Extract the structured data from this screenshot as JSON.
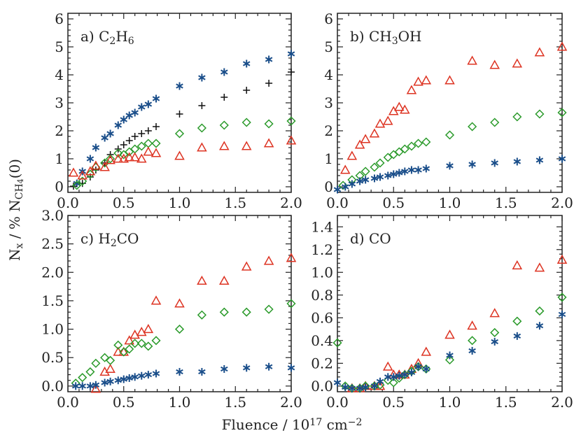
{
  "colors": {
    "C2H6": "#1a4e8a",
    "CH3OH": "#dd3322",
    "H2CO": "#2a9a2a",
    "CO": "#111111"
  },
  "axes": {
    "xlabel_main": "Fluence / 10",
    "xlabel_exp": "17",
    "xlabel_unit": " cm",
    "xlabel_unit_exp": "−2",
    "ylabel_main": "N",
    "ylabel_sub": "x",
    "ylabel_mid": " / % N",
    "ylabel_sub2": "CH",
    "ylabel_sub3": "4",
    "ylabel_end": "(0)"
  },
  "chart_data": [
    {
      "type": "scatter",
      "panel": "a",
      "label_prefix": "a)",
      "label_parts": [
        [
          "C",
          ""
        ],
        [
          "2",
          "sub"
        ],
        [
          "H",
          ""
        ],
        [
          "6",
          "sub"
        ]
      ],
      "xlim": [
        0,
        2.0
      ],
      "ylim": [
        -0.2,
        6.2
      ],
      "xticks": [
        0.0,
        0.5,
        1.0,
        1.5,
        2.0
      ],
      "xtick_labels": [
        "0.0",
        "0.5",
        "1.0",
        "1.5",
        "2.0"
      ],
      "yticks": [
        0,
        1,
        2,
        3,
        4,
        5,
        6
      ],
      "ytick_labels": [
        "0",
        "1",
        "2",
        "3",
        "4",
        "5",
        "6"
      ],
      "series": [
        {
          "marker": "star",
          "color_key": "C2H6",
          "x": [
            0.08,
            0.13,
            0.2,
            0.25,
            0.33,
            0.38,
            0.45,
            0.5,
            0.55,
            0.6,
            0.66,
            0.72,
            0.79,
            1.0,
            1.2,
            1.4,
            1.6,
            1.8,
            2.0
          ],
          "y": [
            0.12,
            0.55,
            1.0,
            1.4,
            1.75,
            1.9,
            2.2,
            2.4,
            2.55,
            2.65,
            2.85,
            2.95,
            3.15,
            3.6,
            3.9,
            4.1,
            4.4,
            4.55,
            4.75
          ]
        },
        {
          "marker": "plus",
          "color_key": "CO",
          "x": [
            0.05,
            0.13,
            0.2,
            0.25,
            0.33,
            0.38,
            0.45,
            0.5,
            0.55,
            0.6,
            0.66,
            0.72,
            0.79,
            1.0,
            1.2,
            1.4,
            1.6,
            1.8,
            2.0
          ],
          "y": [
            0.02,
            0.12,
            0.35,
            0.6,
            0.85,
            1.15,
            1.35,
            1.5,
            1.65,
            1.8,
            1.9,
            2.0,
            2.15,
            2.6,
            2.9,
            3.2,
            3.45,
            3.7,
            4.1
          ]
        },
        {
          "marker": "diamond",
          "color_key": "H2CO",
          "x": [
            0.08,
            0.13,
            0.2,
            0.25,
            0.33,
            0.38,
            0.45,
            0.5,
            0.55,
            0.6,
            0.66,
            0.72,
            0.79,
            1.0,
            1.2,
            1.4,
            1.6,
            1.8,
            2.0
          ],
          "y": [
            0.05,
            0.2,
            0.45,
            0.7,
            0.85,
            1.0,
            1.2,
            1.15,
            1.25,
            1.35,
            1.45,
            1.55,
            1.55,
            1.9,
            2.1,
            2.2,
            2.3,
            2.25,
            2.35
          ]
        },
        {
          "marker": "triangle",
          "color_key": "CH3OH",
          "x": [
            0.05,
            0.13,
            0.2,
            0.25,
            0.33,
            0.38,
            0.45,
            0.5,
            0.55,
            0.6,
            0.66,
            0.72,
            0.79,
            1.0,
            1.2,
            1.4,
            1.6,
            1.8,
            2.0
          ],
          "y": [
            0.5,
            0.4,
            0.55,
            0.75,
            0.7,
            0.95,
            1.0,
            1.0,
            1.05,
            1.05,
            1.0,
            1.25,
            1.2,
            1.1,
            1.4,
            1.45,
            1.45,
            1.55,
            1.65
          ]
        }
      ]
    },
    {
      "type": "scatter",
      "panel": "b",
      "label_prefix": "b)",
      "label_parts": [
        [
          "CH",
          ""
        ],
        [
          "3",
          "sub"
        ],
        [
          "OH",
          ""
        ]
      ],
      "xlim": [
        0,
        2.0
      ],
      "ylim": [
        -0.2,
        6.2
      ],
      "xticks": [
        0.0,
        0.5,
        1.0,
        1.5,
        2.0
      ],
      "xtick_labels": [
        "0.0",
        "0.5",
        "1.0",
        "1.5",
        "2.0"
      ],
      "yticks": [
        0,
        1,
        2,
        3,
        4,
        5,
        6
      ],
      "ytick_labels": [
        "0",
        "1",
        "2",
        "3",
        "4",
        "5",
        "6"
      ],
      "series": [
        {
          "marker": "triangle",
          "color_key": "CH3OH",
          "x": [
            0.07,
            0.13,
            0.2,
            0.25,
            0.33,
            0.38,
            0.45,
            0.5,
            0.55,
            0.6,
            0.66,
            0.72,
            0.79,
            1.0,
            1.2,
            1.4,
            1.6,
            1.8,
            2.0
          ],
          "y": [
            0.6,
            1.1,
            1.5,
            1.7,
            1.9,
            2.25,
            2.35,
            2.7,
            2.85,
            2.75,
            3.45,
            3.75,
            3.8,
            3.8,
            4.5,
            4.35,
            4.4,
            4.8,
            5.0
          ]
        },
        {
          "marker": "diamond",
          "color_key": "H2CO",
          "x": [
            0.05,
            0.13,
            0.2,
            0.25,
            0.33,
            0.38,
            0.45,
            0.5,
            0.55,
            0.6,
            0.66,
            0.72,
            0.79,
            1.0,
            1.2,
            1.4,
            1.6,
            1.8,
            2.0
          ],
          "y": [
            0.05,
            0.25,
            0.4,
            0.55,
            0.7,
            0.85,
            1.05,
            1.15,
            1.25,
            1.35,
            1.45,
            1.55,
            1.6,
            1.85,
            2.15,
            2.3,
            2.5,
            2.6,
            2.65
          ]
        },
        {
          "marker": "star",
          "color_key": "C2H6",
          "x": [
            0.0,
            0.07,
            0.13,
            0.2,
            0.25,
            0.33,
            0.38,
            0.45,
            0.5,
            0.55,
            0.6,
            0.66,
            0.72,
            0.79,
            1.0,
            1.2,
            1.4,
            1.6,
            1.8,
            2.0
          ],
          "y": [
            -0.1,
            0.0,
            0.1,
            0.2,
            0.25,
            0.3,
            0.35,
            0.4,
            0.45,
            0.5,
            0.55,
            0.6,
            0.6,
            0.65,
            0.75,
            0.8,
            0.85,
            0.9,
            0.95,
            1.0
          ]
        }
      ]
    },
    {
      "type": "scatter",
      "panel": "c",
      "label_prefix": "c)",
      "label_parts": [
        [
          "H",
          ""
        ],
        [
          "2",
          "sub"
        ],
        [
          "CO",
          ""
        ]
      ],
      "xlim": [
        0,
        2.0
      ],
      "ylim": [
        -0.1,
        3.0
      ],
      "xticks": [
        0.0,
        0.5,
        1.0,
        1.5,
        2.0
      ],
      "xtick_labels": [
        "0.0",
        "0.5",
        "1.0",
        "1.5",
        "2.0"
      ],
      "yticks": [
        0.0,
        0.5,
        1.0,
        1.5,
        2.0,
        2.5,
        3.0
      ],
      "ytick_labels": [
        "0.0",
        "0.5",
        "1.0",
        "1.5",
        "2.0",
        "2.5",
        "3.0"
      ],
      "series": [
        {
          "marker": "triangle",
          "color_key": "CH3OH",
          "x": [
            0.25,
            0.33,
            0.38,
            0.45,
            0.5,
            0.55,
            0.6,
            0.66,
            0.72,
            0.79,
            1.0,
            1.2,
            1.4,
            1.6,
            1.8,
            2.0
          ],
          "y": [
            -0.05,
            0.25,
            0.3,
            0.6,
            0.6,
            0.8,
            0.9,
            0.95,
            1.0,
            1.5,
            1.45,
            1.85,
            1.85,
            2.1,
            2.2,
            2.25
          ]
        },
        {
          "marker": "diamond",
          "color_key": "H2CO",
          "x": [
            0.07,
            0.13,
            0.2,
            0.25,
            0.33,
            0.38,
            0.45,
            0.5,
            0.55,
            0.6,
            0.66,
            0.72,
            0.79,
            1.0,
            1.2,
            1.4,
            1.6,
            1.8,
            2.0
          ],
          "y": [
            0.05,
            0.15,
            0.25,
            0.4,
            0.5,
            0.45,
            0.72,
            0.6,
            0.65,
            0.75,
            0.75,
            0.7,
            0.8,
            1.0,
            1.25,
            1.3,
            1.3,
            1.35,
            1.45
          ]
        },
        {
          "marker": "star",
          "color_key": "C2H6",
          "x": [
            0.07,
            0.13,
            0.2,
            0.25,
            0.33,
            0.38,
            0.45,
            0.5,
            0.55,
            0.6,
            0.66,
            0.72,
            0.79,
            1.0,
            1.2,
            1.4,
            1.6,
            1.8,
            2.0
          ],
          "y": [
            0.0,
            0.0,
            0.0,
            0.02,
            0.06,
            0.08,
            0.1,
            0.12,
            0.14,
            0.16,
            0.18,
            0.2,
            0.22,
            0.25,
            0.25,
            0.3,
            0.32,
            0.34,
            0.32
          ]
        }
      ]
    },
    {
      "type": "scatter",
      "panel": "d",
      "label_prefix": "d)",
      "label_parts": [
        [
          "CO",
          ""
        ]
      ],
      "xlim": [
        0,
        2.0
      ],
      "ylim": [
        -0.05,
        1.5
      ],
      "xticks": [
        0.0,
        0.5,
        1.0,
        1.5,
        2.0
      ],
      "xtick_labels": [
        "0.0",
        "0.5",
        "1.0",
        "1.5",
        "2.0"
      ],
      "yticks": [
        0.0,
        0.2,
        0.4,
        0.6,
        0.8,
        1.0,
        1.2,
        1.4
      ],
      "ytick_labels": [
        "0.0",
        "0.2",
        "0.4",
        "0.6",
        "0.8",
        "1.0",
        "1.2",
        "1.4"
      ],
      "series": [
        {
          "marker": "triangle",
          "color_key": "CH3OH",
          "x": [
            0.13,
            0.2,
            0.25,
            0.33,
            0.38,
            0.45,
            0.5,
            0.55,
            0.6,
            0.66,
            0.72,
            0.79,
            1.0,
            1.2,
            1.4,
            1.6,
            1.8,
            2.0
          ],
          "y": [
            -0.02,
            -0.02,
            0.0,
            0.0,
            0.0,
            0.17,
            0.1,
            0.1,
            0.1,
            0.15,
            0.2,
            0.3,
            0.45,
            0.53,
            0.64,
            1.06,
            1.04,
            1.11
          ]
        },
        {
          "marker": "diamond",
          "color_key": "H2CO",
          "x": [
            0.0,
            0.07,
            0.13,
            0.2,
            0.25,
            0.33,
            0.38,
            0.45,
            0.5,
            0.55,
            0.6,
            0.66,
            0.72,
            0.79,
            1.0,
            1.2,
            1.4,
            1.6,
            1.8,
            2.0
          ],
          "y": [
            0.38,
            0.0,
            -0.02,
            -0.02,
            0.0,
            0.0,
            0.01,
            0.05,
            0.03,
            0.07,
            0.1,
            0.13,
            0.17,
            0.15,
            0.23,
            0.4,
            0.47,
            0.57,
            0.66,
            0.78
          ]
        },
        {
          "marker": "star",
          "color_key": "C2H6",
          "x": [
            0.0,
            0.07,
            0.13,
            0.2,
            0.25,
            0.33,
            0.38,
            0.45,
            0.5,
            0.55,
            0.6,
            0.66,
            0.72,
            0.79,
            1.0,
            1.2,
            1.4,
            1.6,
            1.8,
            2.0
          ],
          "y": [
            0.03,
            -0.01,
            -0.02,
            -0.02,
            -0.01,
            0.0,
            0.04,
            0.08,
            0.08,
            0.09,
            0.1,
            0.12,
            0.17,
            0.15,
            0.27,
            0.31,
            0.39,
            0.44,
            0.53,
            0.63
          ]
        }
      ]
    }
  ]
}
